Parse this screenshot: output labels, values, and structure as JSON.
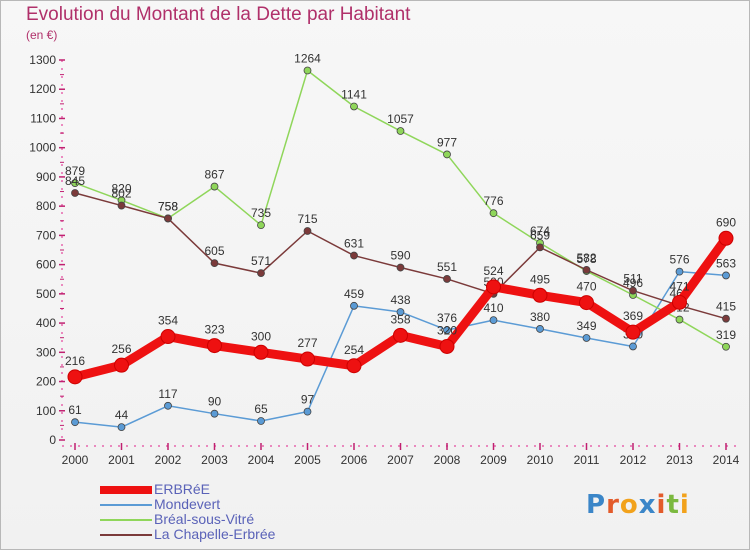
{
  "title": "Evolution du Montant de la Dette par Habitant",
  "subtitle": "(en €)",
  "logo_text": "Proxiti",
  "colors": {
    "title": "#b0306a",
    "legend_text": "#5a62b8"
  },
  "chart_data": {
    "type": "line",
    "x": [
      "2000",
      "2001",
      "2002",
      "2003",
      "2004",
      "2005",
      "2006",
      "2007",
      "2008",
      "2009",
      "2010",
      "2011",
      "2012",
      "2013",
      "2014"
    ],
    "ylim": [
      0,
      1300
    ],
    "yticks": [
      0,
      100,
      200,
      300,
      400,
      500,
      600,
      700,
      800,
      900,
      1000,
      1100,
      1200,
      1300
    ],
    "grid": false,
    "legend_position": "bottom-left",
    "series": [
      {
        "name": "ERBRéE",
        "color": "#ee1111",
        "emphasis": true,
        "values": [
          216,
          256,
          354,
          323,
          300,
          277,
          254,
          358,
          320,
          524,
          495,
          470,
          369,
          471,
          690
        ],
        "labels": [
          "216",
          "256",
          "354",
          "323",
          "300",
          "277",
          "254",
          "358",
          "320",
          "524",
          "495",
          "470",
          "369",
          "471",
          "690"
        ]
      },
      {
        "name": "Mondevert",
        "color": "#5b9bd5",
        "emphasis": false,
        "values": [
          61,
          44,
          117,
          90,
          65,
          97,
          459,
          438,
          376,
          410,
          380,
          349,
          320,
          576,
          563
        ],
        "labels": [
          "61",
          "44",
          "117",
          "90",
          "65",
          "97",
          "459",
          "438",
          "376",
          "410",
          "380",
          "349",
          "320",
          "576",
          "563"
        ]
      },
      {
        "name": "Bréal-sous-Vitré",
        "color": "#8fd65a",
        "emphasis": false,
        "values": [
          879,
          820,
          758,
          867,
          735,
          1264,
          1141,
          1057,
          977,
          776,
          674,
          578,
          496,
          412,
          319
        ],
        "labels": [
          "879",
          "820",
          "758",
          "867",
          "735",
          "1264",
          "1141",
          "1057",
          "977",
          "776",
          "674",
          "578",
          "496",
          "412",
          "319"
        ]
      },
      {
        "name": "La Chapelle-Erbrée",
        "color": "#7b3a3a",
        "emphasis": false,
        "values": [
          845,
          802,
          758,
          605,
          571,
          715,
          631,
          590,
          551,
          500,
          659,
          582,
          511,
          460,
          415
        ],
        "labels": [
          "845",
          "802",
          "758",
          "605",
          "571",
          "715",
          "631",
          "590",
          "551",
          "500",
          "659",
          "582",
          "511",
          "460",
          "415"
        ]
      }
    ]
  }
}
